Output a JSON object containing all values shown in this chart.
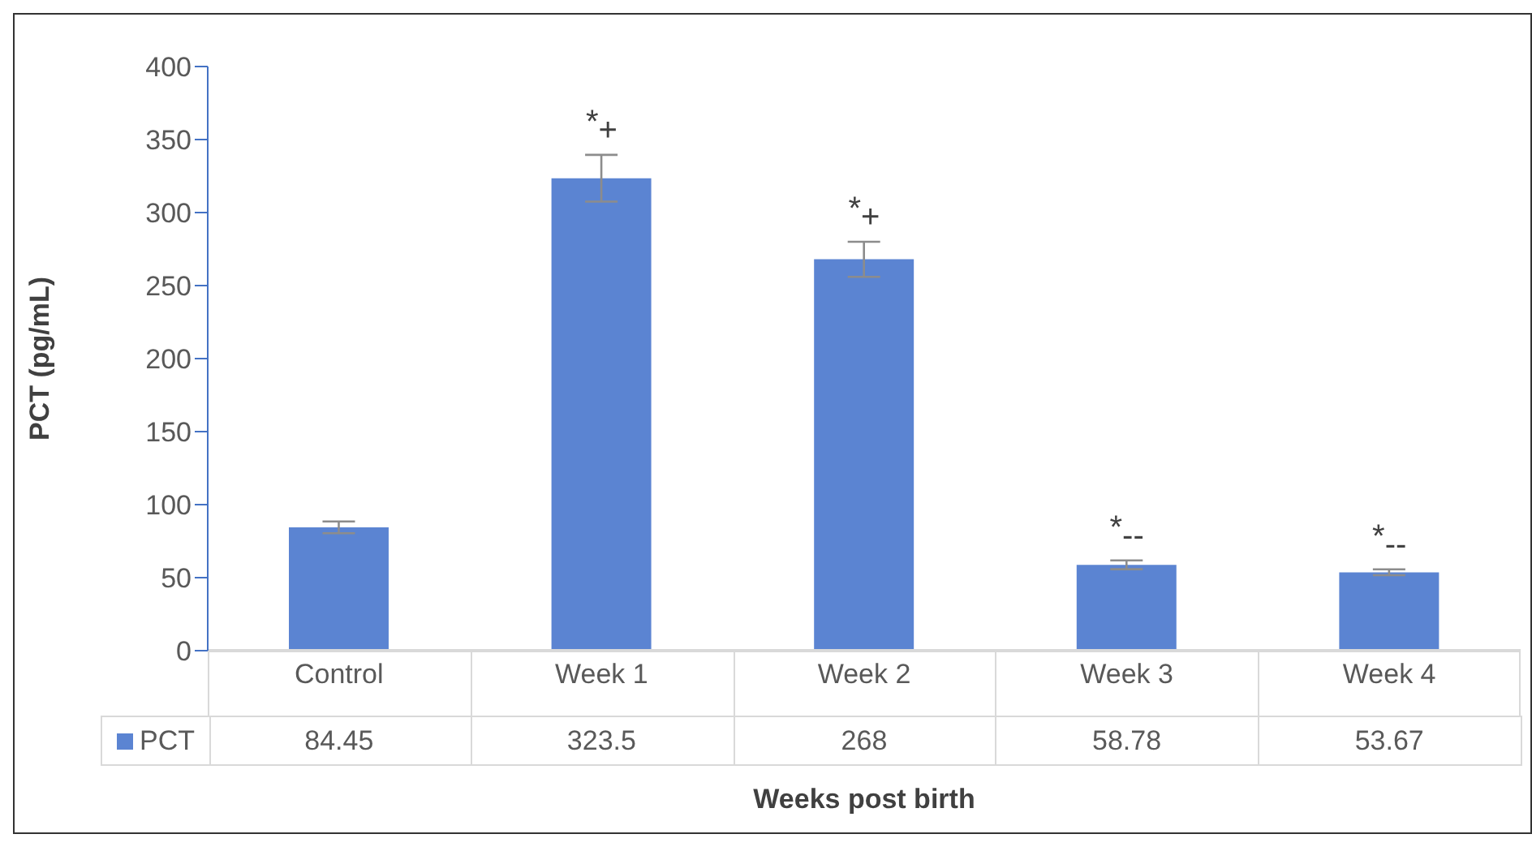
{
  "chart_data": {
    "type": "bar",
    "xlabel": "Weeks post birth",
    "ylabel": "PCT (pg/mL)",
    "categories": [
      "Control",
      "Week 1",
      "Week 2",
      "Week 3",
      "Week 4"
    ],
    "series": [
      {
        "name": "PCT",
        "color": "#5b84d2",
        "values": [
          84.45,
          323.5,
          268,
          58.78,
          53.67
        ],
        "errors": [
          4,
          16,
          12,
          3,
          2
        ]
      }
    ],
    "ylim": [
      0,
      400
    ],
    "yticks": [
      0,
      50,
      100,
      150,
      200,
      250,
      300,
      350,
      400
    ],
    "grid": false,
    "legend": "bottom",
    "data_labels": true,
    "annotations": [
      {
        "text": "*$_{+}$",
        "x": "Week 1",
        "y": 323.5
      },
      {
        "text": "*$_{+}$",
        "x": "Week 2",
        "y": 268
      },
      {
        "text": "*$_{--}$",
        "x": "Week 3",
        "y": 58.78
      },
      {
        "text": "*$_{--}$",
        "x": "Week 4",
        "y": 53.67
      }
    ]
  }
}
